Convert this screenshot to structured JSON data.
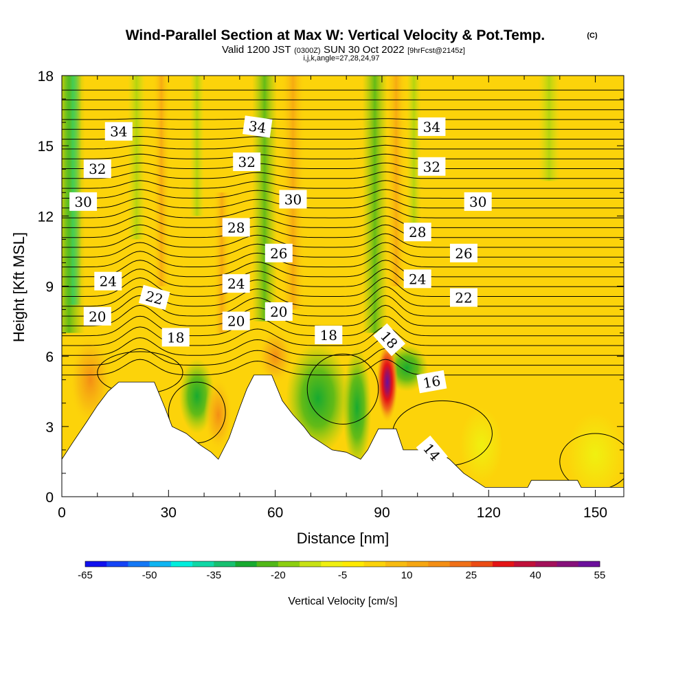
{
  "chart_data": {
    "type": "heatmap",
    "title": "Wind-Parallel Section at Max W: Vertical Velocity & Pot.Temp.",
    "copyright": "(C)",
    "subtitle": {
      "valid_prefix": "Valid 1200 JST",
      "utc": "(0300Z)",
      "date": "SUN 30 Oct 2022",
      "forecast": "[9hrFcst@2145z]"
    },
    "indices": "i,j,k,angle=27,28,24,97",
    "xlabel": "Distance [nm]",
    "ylabel": "Height [Kft MSL]",
    "xlim": [
      0,
      158
    ],
    "ylim": [
      0,
      18
    ],
    "x_ticks": [
      0,
      30,
      60,
      90,
      120,
      150
    ],
    "y_ticks": [
      0,
      3,
      6,
      9,
      12,
      15,
      18
    ],
    "colorbar": {
      "label": "Vertical Velocity [cm/s]",
      "tick_labels": [
        "-65",
        "-50",
        "-35",
        "-20",
        "-5",
        "10",
        "25",
        "40",
        "55"
      ],
      "colors": [
        "#1010ee",
        "#1544f5",
        "#1478f5",
        "#0fb5f2",
        "#00eedd",
        "#10d8a6",
        "#18c070",
        "#18aa30",
        "#52b818",
        "#8ccf10",
        "#c8e214",
        "#f0f010",
        "#ffea00",
        "#fcd30a",
        "#f8bb10",
        "#f6a612",
        "#f48e14",
        "#f07018",
        "#ec4c14",
        "#e41416",
        "#c0103a",
        "#a3105a",
        "#86107a",
        "#6c109c"
      ]
    },
    "terrain_kft": [
      [
        0,
        1.6
      ],
      [
        3,
        2.3
      ],
      [
        7,
        3.2
      ],
      [
        10,
        3.9
      ],
      [
        13,
        4.5
      ],
      [
        16,
        4.9
      ],
      [
        26,
        4.9
      ],
      [
        29,
        3.8
      ],
      [
        31,
        3.0
      ],
      [
        35,
        2.7
      ],
      [
        39,
        2.2
      ],
      [
        42,
        1.9
      ],
      [
        44,
        1.6
      ],
      [
        47,
        2.5
      ],
      [
        50,
        3.8
      ],
      [
        52,
        4.6
      ],
      [
        54,
        5.2
      ],
      [
        59,
        5.2
      ],
      [
        62,
        4.1
      ],
      [
        65,
        3.5
      ],
      [
        68,
        3.0
      ],
      [
        70,
        2.6
      ],
      [
        72,
        2.4
      ],
      [
        76,
        2.0
      ],
      [
        80,
        1.9
      ],
      [
        84,
        1.6
      ],
      [
        86,
        2.0
      ],
      [
        89,
        2.9
      ],
      [
        94,
        2.9
      ],
      [
        96,
        2.0
      ],
      [
        105,
        2.0
      ],
      [
        109,
        1.6
      ],
      [
        111,
        1.3
      ],
      [
        113,
        1.0
      ],
      [
        115,
        0.8
      ],
      [
        117,
        0.6
      ],
      [
        119,
        0.4
      ],
      [
        131,
        0.4
      ],
      [
        132,
        0.7
      ],
      [
        145,
        0.7
      ],
      [
        146,
        0.4
      ],
      [
        155,
        0.4
      ],
      [
        158,
        0.4
      ]
    ],
    "contour_labels": [
      {
        "theta": "34",
        "x": 16,
        "y": 15.6,
        "angle": 0
      },
      {
        "theta": "34",
        "x": 55,
        "y": 15.8,
        "angle": 8
      },
      {
        "theta": "34",
        "x": 104,
        "y": 15.8,
        "angle": 0
      },
      {
        "theta": "32",
        "x": 10,
        "y": 14.0,
        "angle": 0
      },
      {
        "theta": "32",
        "x": 52,
        "y": 14.3,
        "angle": 0
      },
      {
        "theta": "32",
        "x": 104,
        "y": 14.1,
        "angle": 0
      },
      {
        "theta": "30",
        "x": 6,
        "y": 12.6,
        "angle": 0
      },
      {
        "theta": "30",
        "x": 65,
        "y": 12.7,
        "angle": 0
      },
      {
        "theta": "30",
        "x": 117,
        "y": 12.6,
        "angle": 0
      },
      {
        "theta": "28",
        "x": 49,
        "y": 11.5,
        "angle": 0
      },
      {
        "theta": "28",
        "x": 100,
        "y": 11.3,
        "angle": 0
      },
      {
        "theta": "26",
        "x": 61,
        "y": 10.4,
        "angle": 0
      },
      {
        "theta": "26",
        "x": 113,
        "y": 10.4,
        "angle": 0
      },
      {
        "theta": "24",
        "x": 13,
        "y": 9.2,
        "angle": 0
      },
      {
        "theta": "24",
        "x": 49,
        "y": 9.1,
        "angle": 0
      },
      {
        "theta": "24",
        "x": 100,
        "y": 9.3,
        "angle": 0
      },
      {
        "theta": "22",
        "x": 26,
        "y": 8.5,
        "angle": 15
      },
      {
        "theta": "22",
        "x": 113,
        "y": 8.5,
        "angle": 0
      },
      {
        "theta": "20",
        "x": 10,
        "y": 7.7,
        "angle": 0
      },
      {
        "theta": "20",
        "x": 49,
        "y": 7.5,
        "angle": 0
      },
      {
        "theta": "20",
        "x": 61,
        "y": 7.9,
        "angle": 0
      },
      {
        "theta": "18",
        "x": 32,
        "y": 6.8,
        "angle": 0
      },
      {
        "theta": "18",
        "x": 75,
        "y": 6.9,
        "angle": 0
      },
      {
        "theta": "18",
        "x": 92,
        "y": 6.7,
        "angle": 48
      },
      {
        "theta": "16",
        "x": 104,
        "y": 4.9,
        "angle": -10
      },
      {
        "theta": "14",
        "x": 104,
        "y": 1.9,
        "angle": 50
      }
    ]
  }
}
